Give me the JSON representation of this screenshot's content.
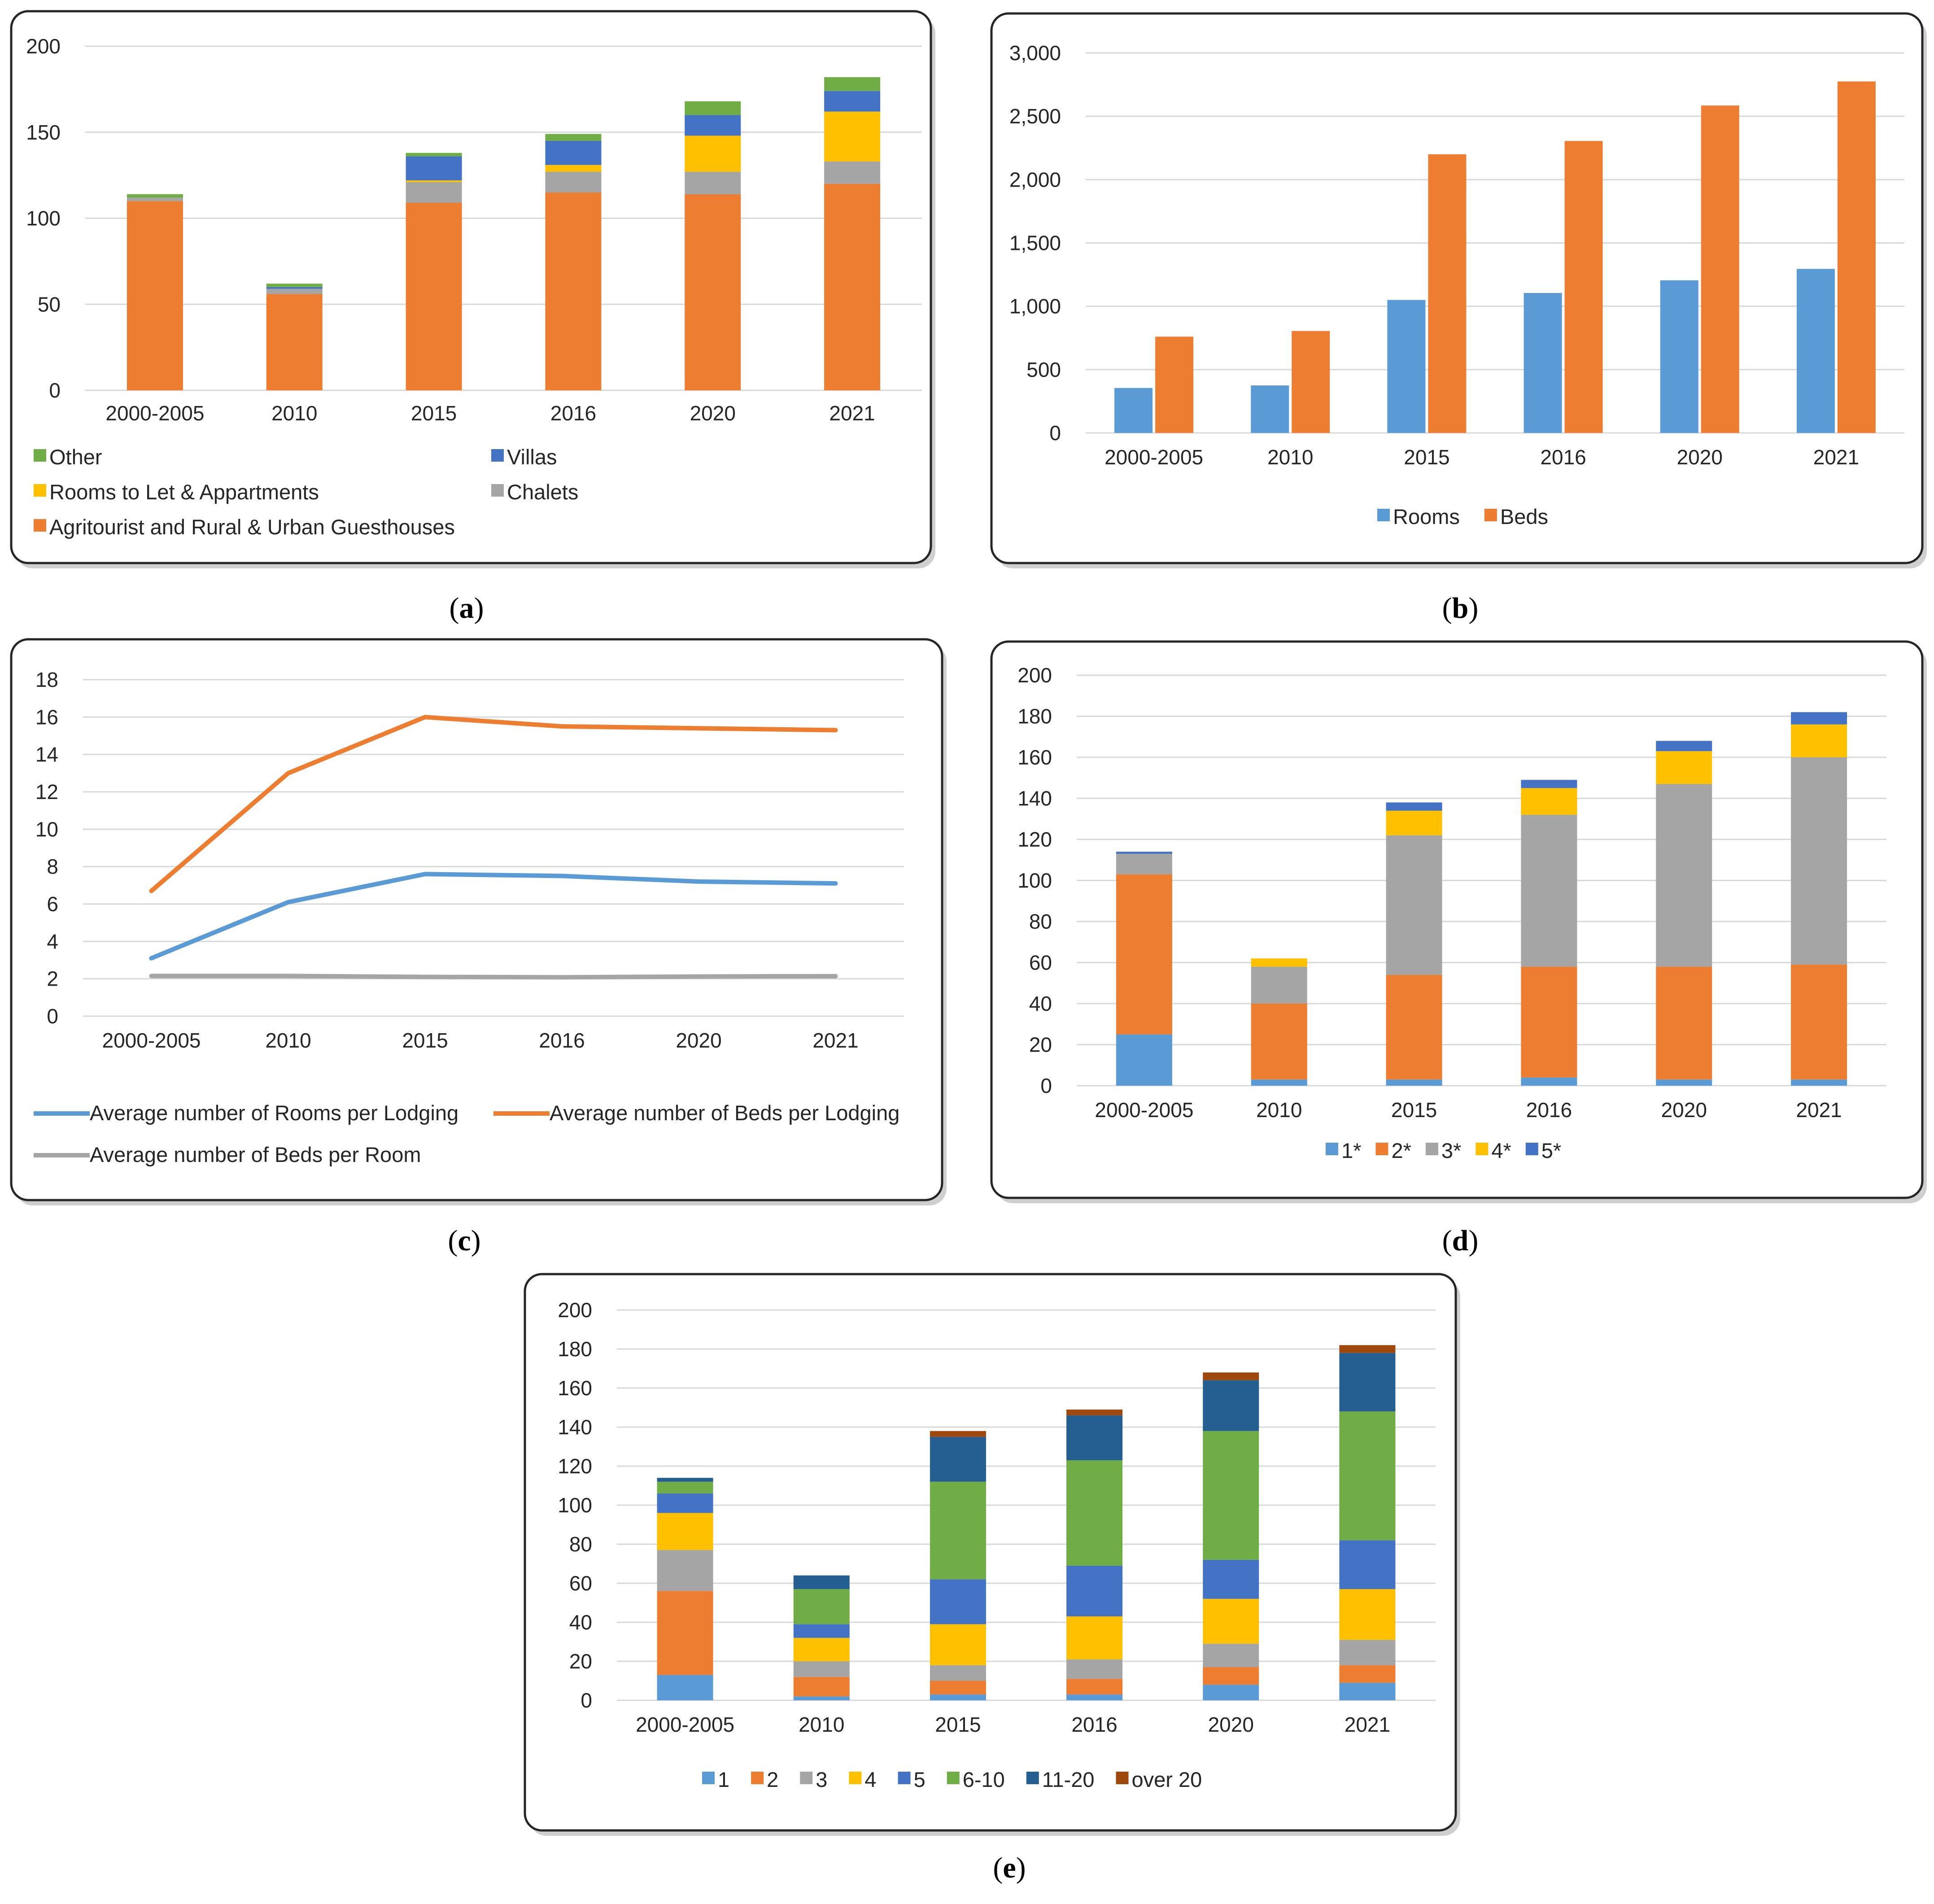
{
  "colors": {
    "orange": "#ED7D31",
    "blue": "#5B9BD5",
    "grey": "#A5A5A5",
    "yellow": "#FFC000",
    "royal": "#4472C4",
    "green": "#70AD47",
    "navy": "#255E91",
    "brown": "#9E480E"
  },
  "chart_data": [
    {
      "id": "a",
      "caption": "(a)",
      "type": "bar",
      "stacked": true,
      "categories": [
        "2000-2005",
        "2010",
        "2015",
        "2016",
        "2020",
        "2021"
      ],
      "ylim": [
        0,
        200
      ],
      "yticks": [
        0,
        50,
        100,
        150,
        200
      ],
      "grid": true,
      "series": [
        {
          "name": "Agritourist and Rural & Urban Guesthouses",
          "color": "#ED7D31",
          "values": [
            110,
            56,
            109,
            115,
            114,
            120
          ]
        },
        {
          "name": "Chalets",
          "color": "#A5A5A5",
          "values": [
            2,
            3,
            12,
            12,
            13,
            13
          ]
        },
        {
          "name": "Rooms to Let & Appartments",
          "color": "#FFC000",
          "values": [
            0,
            0,
            1,
            4,
            21,
            29
          ]
        },
        {
          "name": "Villas",
          "color": "#4472C4",
          "values": [
            0,
            1,
            14,
            14,
            12,
            12
          ]
        },
        {
          "name": "Other",
          "color": "#70AD47",
          "values": [
            2,
            2,
            2,
            4,
            8,
            8
          ]
        }
      ],
      "legend_order": [
        4,
        3,
        2,
        1,
        0
      ]
    },
    {
      "id": "b",
      "caption": "(b)",
      "type": "bar",
      "stacked": false,
      "categories": [
        "2000-2005",
        "2010",
        "2015",
        "2016",
        "2020",
        "2021"
      ],
      "ylim": [
        0,
        3000
      ],
      "yticks": [
        "0",
        "500",
        "1,000",
        "1,500",
        "2,000",
        "2,500",
        "3,000"
      ],
      "grid": true,
      "series": [
        {
          "name": "Rooms",
          "color": "#5B9BD5",
          "values": [
            355,
            375,
            1050,
            1105,
            1205,
            1295
          ]
        },
        {
          "name": "Beds",
          "color": "#ED7D31",
          "values": [
            760,
            805,
            2200,
            2305,
            2585,
            2775
          ]
        }
      ]
    },
    {
      "id": "c",
      "caption": "(c)",
      "type": "line",
      "categories": [
        "2000-2005",
        "2010",
        "2015",
        "2016",
        "2020",
        "2021"
      ],
      "ylim": [
        0,
        18
      ],
      "yticks": [
        0,
        2,
        4,
        6,
        8,
        10,
        12,
        14,
        16,
        18
      ],
      "grid": true,
      "series": [
        {
          "name": "Average number of Rooms per Lodging",
          "color": "#5B9BD5",
          "values": [
            3.1,
            6.1,
            7.6,
            7.5,
            7.2,
            7.1
          ]
        },
        {
          "name": "Average number of Beds per Lodging",
          "color": "#ED7D31",
          "values": [
            6.7,
            13.0,
            16.0,
            15.5,
            15.4,
            15.3
          ]
        },
        {
          "name": "Average number of Beds per Room",
          "color": "#A5A5A5",
          "values": [
            2.15,
            2.15,
            2.1,
            2.08,
            2.12,
            2.14
          ]
        }
      ]
    },
    {
      "id": "d",
      "caption": "(d)",
      "type": "bar",
      "stacked": true,
      "categories": [
        "2000-2005",
        "2010",
        "2015",
        "2016",
        "2020",
        "2021"
      ],
      "ylim": [
        0,
        200
      ],
      "yticks": [
        0,
        20,
        40,
        60,
        80,
        100,
        120,
        140,
        160,
        180,
        200
      ],
      "grid": true,
      "series": [
        {
          "name": "1*",
          "color": "#5B9BD5",
          "values": [
            25,
            3,
            3,
            4,
            3,
            3
          ]
        },
        {
          "name": "2*",
          "color": "#ED7D31",
          "values": [
            78,
            37,
            51,
            54,
            55,
            56
          ]
        },
        {
          "name": "3*",
          "color": "#A5A5A5",
          "values": [
            10,
            18,
            68,
            74,
            89,
            101
          ]
        },
        {
          "name": "4*",
          "color": "#FFC000",
          "values": [
            0,
            4,
            12,
            13,
            16,
            16
          ]
        },
        {
          "name": "5*",
          "color": "#4472C4",
          "values": [
            1,
            0,
            4,
            4,
            5,
            6
          ]
        }
      ]
    },
    {
      "id": "e",
      "caption": "(e)",
      "type": "bar",
      "stacked": true,
      "categories": [
        "2000-2005",
        "2010",
        "2015",
        "2016",
        "2020",
        "2021"
      ],
      "ylim": [
        0,
        200
      ],
      "yticks": [
        0,
        20,
        40,
        60,
        80,
        100,
        120,
        140,
        160,
        180,
        200
      ],
      "grid": true,
      "series": [
        {
          "name": "1",
          "color": "#5B9BD5",
          "values": [
            13,
            2,
            3,
            3,
            8,
            9
          ]
        },
        {
          "name": "2",
          "color": "#ED7D31",
          "values": [
            43,
            10,
            7,
            8,
            9,
            9
          ]
        },
        {
          "name": "3",
          "color": "#A5A5A5",
          "values": [
            21,
            8,
            8,
            10,
            12,
            13
          ]
        },
        {
          "name": "4",
          "color": "#FFC000",
          "values": [
            19,
            12,
            21,
            22,
            23,
            26
          ]
        },
        {
          "name": "5",
          "color": "#4472C4",
          "values": [
            10,
            7,
            23,
            26,
            20,
            25
          ]
        },
        {
          "name": "6-10",
          "color": "#70AD47",
          "values": [
            6,
            18,
            50,
            54,
            66,
            66
          ]
        },
        {
          "name": "11-20",
          "color": "#255E91",
          "values": [
            2,
            7,
            23,
            23,
            26,
            30
          ]
        },
        {
          "name": "over 20",
          "color": "#9E480E",
          "values": [
            0,
            0,
            3,
            3,
            4,
            4
          ]
        }
      ]
    }
  ]
}
